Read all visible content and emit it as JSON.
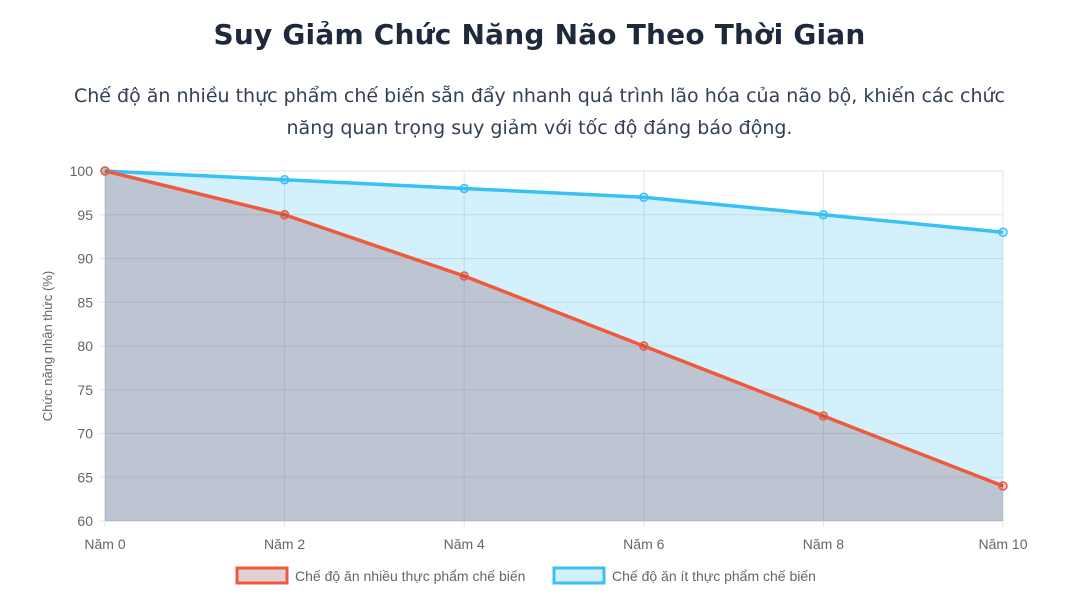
{
  "header": {
    "title": "Suy Giảm Chức Năng Não Theo Thời Gian",
    "subtitle_line1": "Chế độ ăn nhiều thực phẩm chế biến sẵn đẩy nhanh quá trình lão hóa của não bộ, khiến các chức",
    "subtitle_line2": "năng quan trọng suy giảm với tốc độ đáng báo động."
  },
  "chart_data": {
    "type": "area",
    "categories": [
      "Năm 0",
      "Năm 2",
      "Năm 4",
      "Năm 6",
      "Năm 8",
      "Năm 10"
    ],
    "series": [
      {
        "name": "Chế độ ăn nhiều thực phẩm chế biến",
        "values": [
          100,
          95,
          88,
          80,
          72,
          64
        ],
        "color": "#f05a3c",
        "fill": "rgba(120,40,60,0.22)"
      },
      {
        "name": "Chế độ ăn ít thực phẩm chế biến",
        "values": [
          100,
          99,
          98,
          97,
          95,
          93
        ],
        "color": "#38c1f5",
        "fill": "rgba(56,193,245,0.22)"
      }
    ],
    "ylabel": "Chức năng nhận thức (%)",
    "xlabel": "",
    "ylim": [
      60,
      100
    ],
    "yticks": [
      60,
      65,
      70,
      75,
      80,
      85,
      90,
      95,
      100
    ],
    "grid": true,
    "legend": "bottom"
  }
}
